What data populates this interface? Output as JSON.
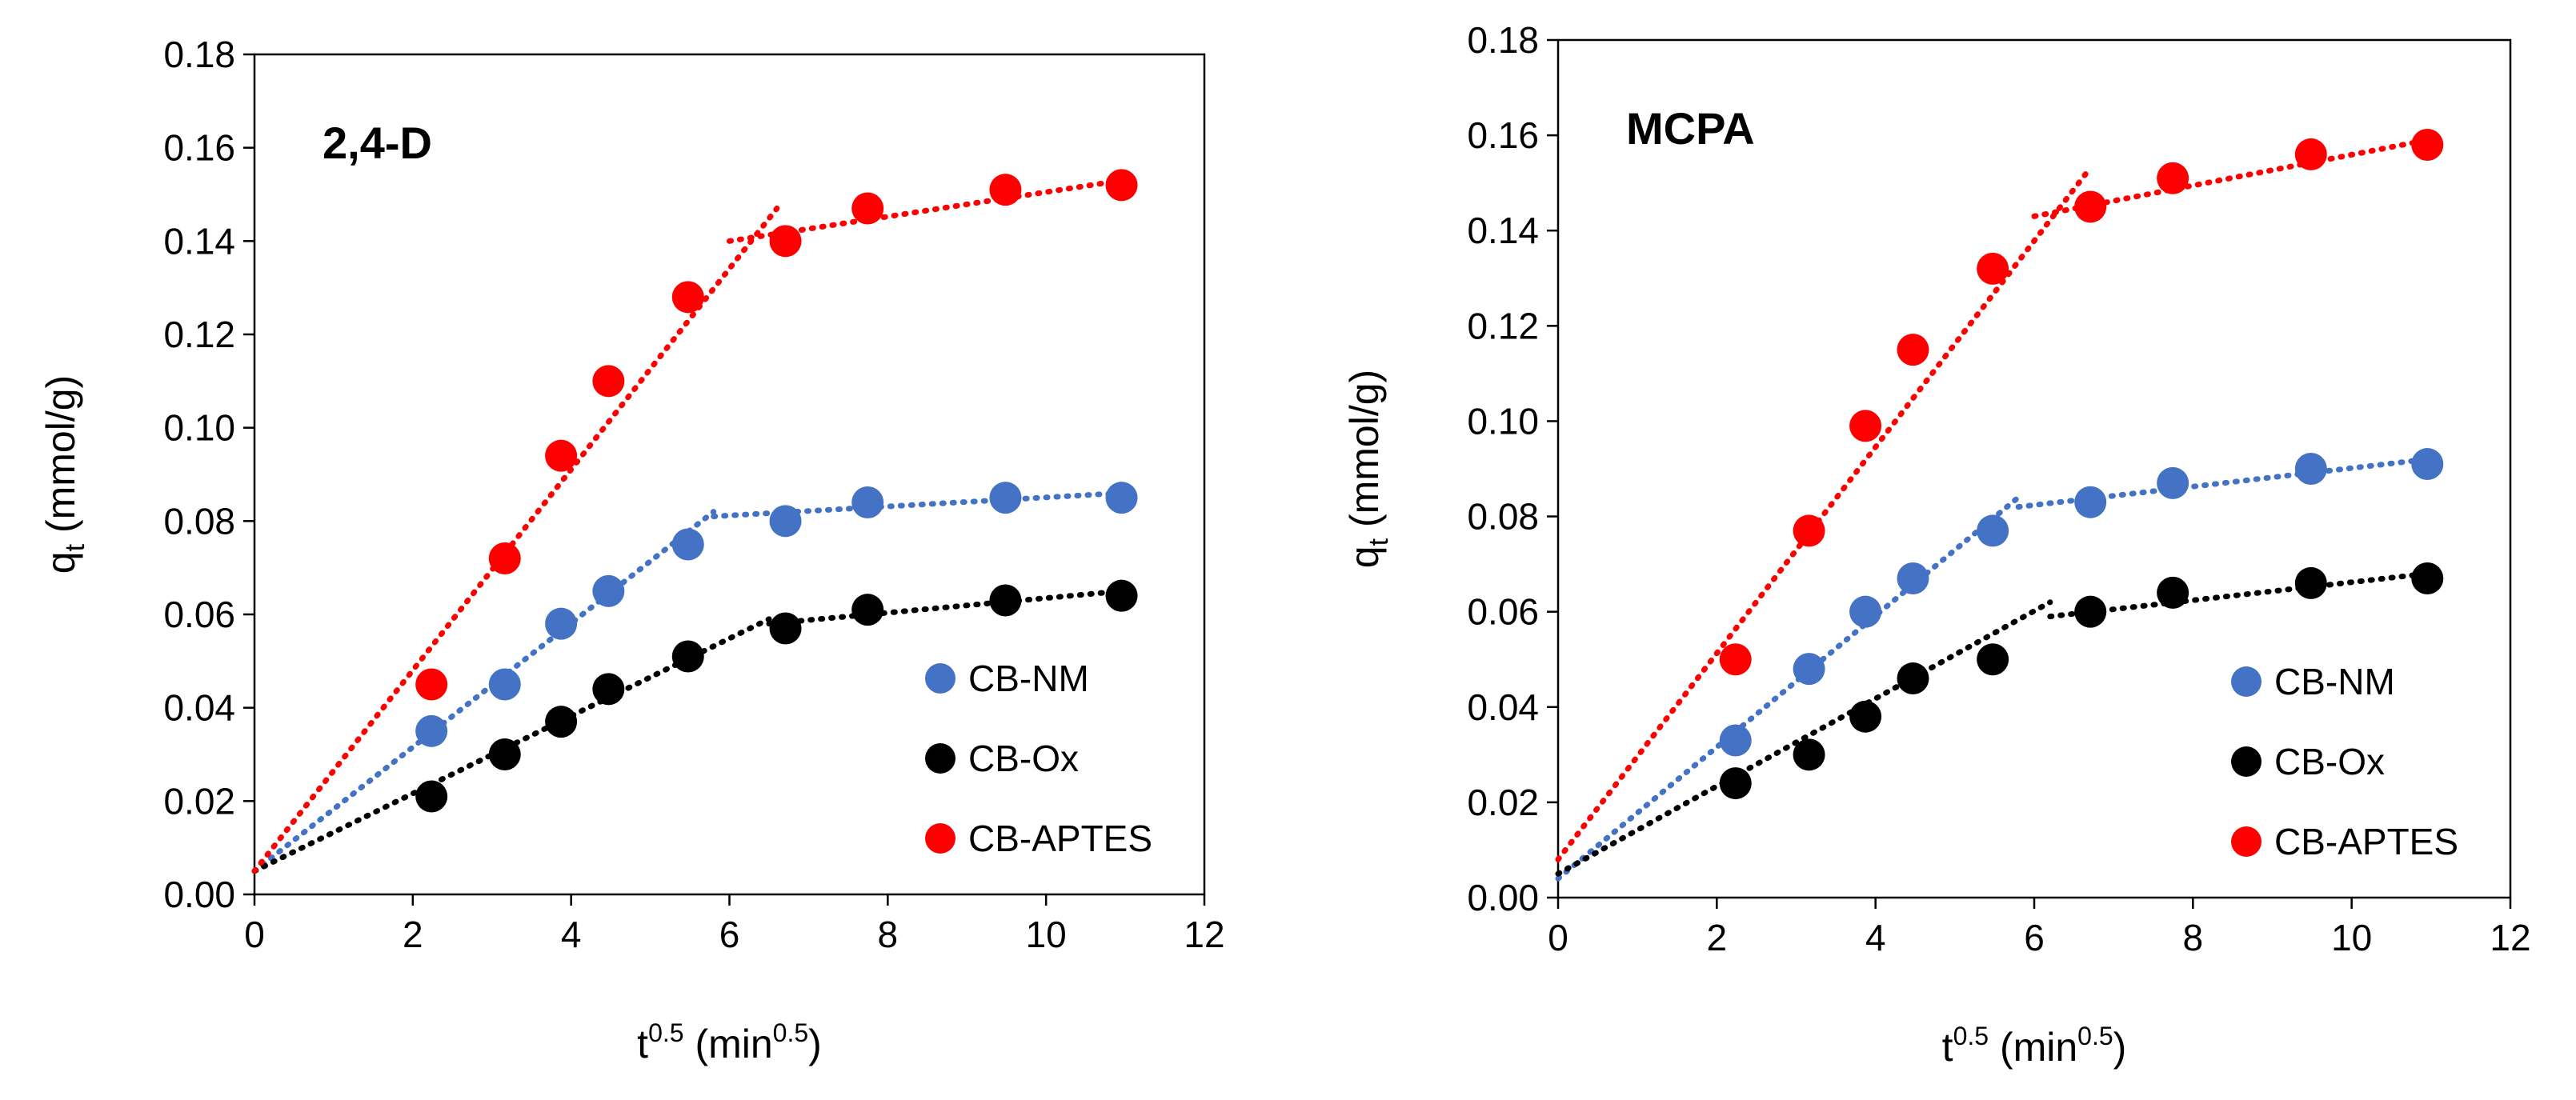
{
  "chart_data": [
    {
      "type": "scatter",
      "title": "2,4-D",
      "xlabel": "t",
      "xlabel_sup": "0.5",
      "xlabel_unit": " (min",
      "xlabel_unit_sup": "0.5",
      "xlabel_close": ")",
      "ylabel": "q",
      "ylabel_sub": "t",
      "ylabel_unit": " (mmol/g)",
      "xlim": [
        0,
        12
      ],
      "ylim": [
        0,
        0.18
      ],
      "xticks": [
        "0",
        "2",
        "4",
        "6",
        "8",
        "10",
        "12"
      ],
      "yticks": [
        "0.00",
        "0.02",
        "0.04",
        "0.06",
        "0.08",
        "0.10",
        "0.12",
        "0.14",
        "0.16",
        "0.18"
      ],
      "series": [
        {
          "name": "CB-NM",
          "color": "#4472C4",
          "x": [
            2.236,
            3.162,
            3.873,
            4.472,
            5.477,
            6.708,
            7.746,
            9.487,
            10.954
          ],
          "y": [
            0.035,
            0.045,
            0.058,
            0.065,
            0.075,
            0.08,
            0.084,
            0.085,
            0.085
          ],
          "trend": [
            [
              [
                0,
                0.005
              ],
              [
                5.8,
                0.082
              ]
            ],
            [
              [
                5.8,
                0.081
              ],
              [
                10.954,
                0.086
              ]
            ]
          ]
        },
        {
          "name": "CB-Ox",
          "color": "#000000",
          "x": [
            2.236,
            3.162,
            3.873,
            4.472,
            5.477,
            6.708,
            7.746,
            9.487,
            10.954
          ],
          "y": [
            0.021,
            0.03,
            0.037,
            0.044,
            0.051,
            0.057,
            0.061,
            0.063,
            0.064
          ],
          "trend": [
            [
              [
                0,
                0.005
              ],
              [
                6.5,
                0.059
              ]
            ],
            [
              [
                6.5,
                0.058
              ],
              [
                10.954,
                0.065
              ]
            ]
          ]
        },
        {
          "name": "CB-APTES",
          "color": "#FF0000",
          "x": [
            2.236,
            3.162,
            3.873,
            4.472,
            5.477,
            6.708,
            7.746,
            9.487,
            10.954
          ],
          "y": [
            0.045,
            0.072,
            0.094,
            0.11,
            0.128,
            0.14,
            0.147,
            0.151,
            0.152
          ],
          "trend": [
            [
              [
                0,
                0.005
              ],
              [
                6.6,
                0.147
              ]
            ],
            [
              [
                6.0,
                0.14
              ],
              [
                10.954,
                0.153
              ]
            ]
          ]
        }
      ],
      "legend_position": "bottom-right"
    },
    {
      "type": "scatter",
      "title": "MCPA",
      "xlabel": "t",
      "xlabel_sup": "0.5",
      "xlabel_unit": " (min",
      "xlabel_unit_sup": "0.5",
      "xlabel_close": ")",
      "ylabel": "q",
      "ylabel_sub": "t",
      "ylabel_unit": " (mmol/g)",
      "xlim": [
        0,
        12
      ],
      "ylim": [
        0,
        0.18
      ],
      "xticks": [
        "0",
        "2",
        "4",
        "6",
        "8",
        "10",
        "12"
      ],
      "yticks": [
        "0.00",
        "0.02",
        "0.04",
        "0.06",
        "0.08",
        "0.10",
        "0.12",
        "0.14",
        "0.16",
        "0.18"
      ],
      "series": [
        {
          "name": "CB-NM",
          "color": "#4472C4",
          "x": [
            2.236,
            3.162,
            3.873,
            4.472,
            5.477,
            6.708,
            7.746,
            9.487,
            10.954
          ],
          "y": [
            0.033,
            0.048,
            0.06,
            0.067,
            0.077,
            0.083,
            0.087,
            0.09,
            0.091
          ],
          "trend": [
            [
              [
                0,
                0.004
              ],
              [
                5.8,
                0.084
              ]
            ],
            [
              [
                5.8,
                0.082
              ],
              [
                10.954,
                0.092
              ]
            ]
          ]
        },
        {
          "name": "CB-Ox",
          "color": "#000000",
          "x": [
            2.236,
            3.162,
            3.873,
            4.472,
            5.477,
            6.708,
            7.746,
            9.487,
            10.954
          ],
          "y": [
            0.024,
            0.03,
            0.038,
            0.046,
            0.05,
            0.06,
            0.064,
            0.066,
            0.067
          ],
          "trend": [
            [
              [
                0,
                0.005
              ],
              [
                6.2,
                0.062
              ]
            ],
            [
              [
                6.2,
                0.059
              ],
              [
                10.954,
                0.068
              ]
            ]
          ]
        },
        {
          "name": "CB-APTES",
          "color": "#FF0000",
          "x": [
            2.236,
            3.162,
            3.873,
            4.472,
            5.477,
            6.708,
            7.746,
            9.487,
            10.954
          ],
          "y": [
            0.05,
            0.077,
            0.099,
            0.115,
            0.132,
            0.145,
            0.151,
            0.156,
            0.158
          ],
          "trend": [
            [
              [
                0,
                0.008
              ],
              [
                6.7,
                0.153
              ]
            ],
            [
              [
                6.0,
                0.143
              ],
              [
                10.954,
                0.159
              ]
            ]
          ]
        }
      ],
      "legend_position": "bottom-right"
    }
  ]
}
